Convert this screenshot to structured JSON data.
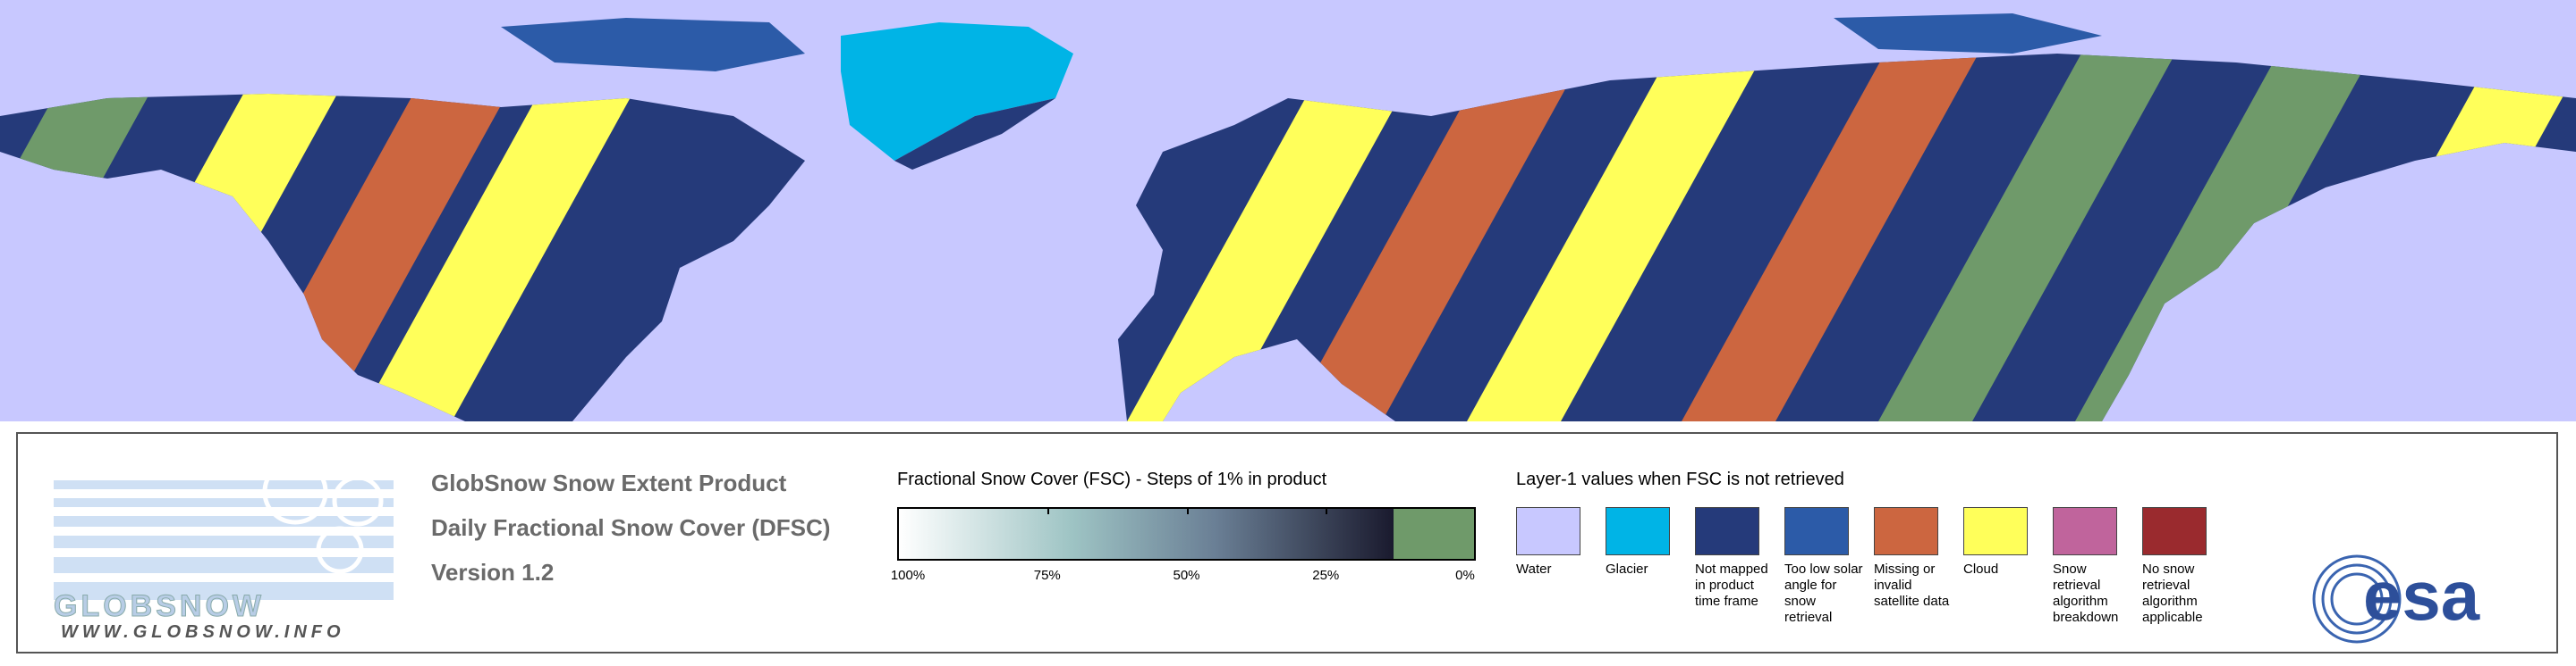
{
  "header": {
    "title": "GlobSnow Snow Extent Product",
    "subtitle": "Daily Fractional Snow Cover (DFSC)",
    "version": "Version 1.2"
  },
  "logo": {
    "name": "GLOBSNOW",
    "url": "WWW.GLOBSNOW.INFO",
    "agency": "esa"
  },
  "fsc_scale": {
    "title": "Fractional Snow Cover (FSC) - Steps of 1% in product",
    "tick_labels": [
      "100%",
      "75%",
      "50%",
      "25%",
      "0%"
    ]
  },
  "layer1": {
    "title": "Layer-1 values when FSC is not retrieved",
    "classes": [
      {
        "label": "Water",
        "color": "#c8c8ff"
      },
      {
        "label": "Glacier",
        "color": "#00b4e6"
      },
      {
        "label": "Not mapped in product time frame",
        "color": "#253a7a"
      },
      {
        "label": "Too low solar angle for snow retrieval",
        "color": "#2c5ba8"
      },
      {
        "label": "Missing or invalid satellite data",
        "color": "#cc6640"
      },
      {
        "label": "Cloud",
        "color": "#ffff5a"
      },
      {
        "label": "Snow retrieval algorithm breakdown",
        "color": "#c0649c"
      },
      {
        "label": "No snow retrieval algorithm applicable",
        "color": "#9a2a2e"
      }
    ]
  }
}
